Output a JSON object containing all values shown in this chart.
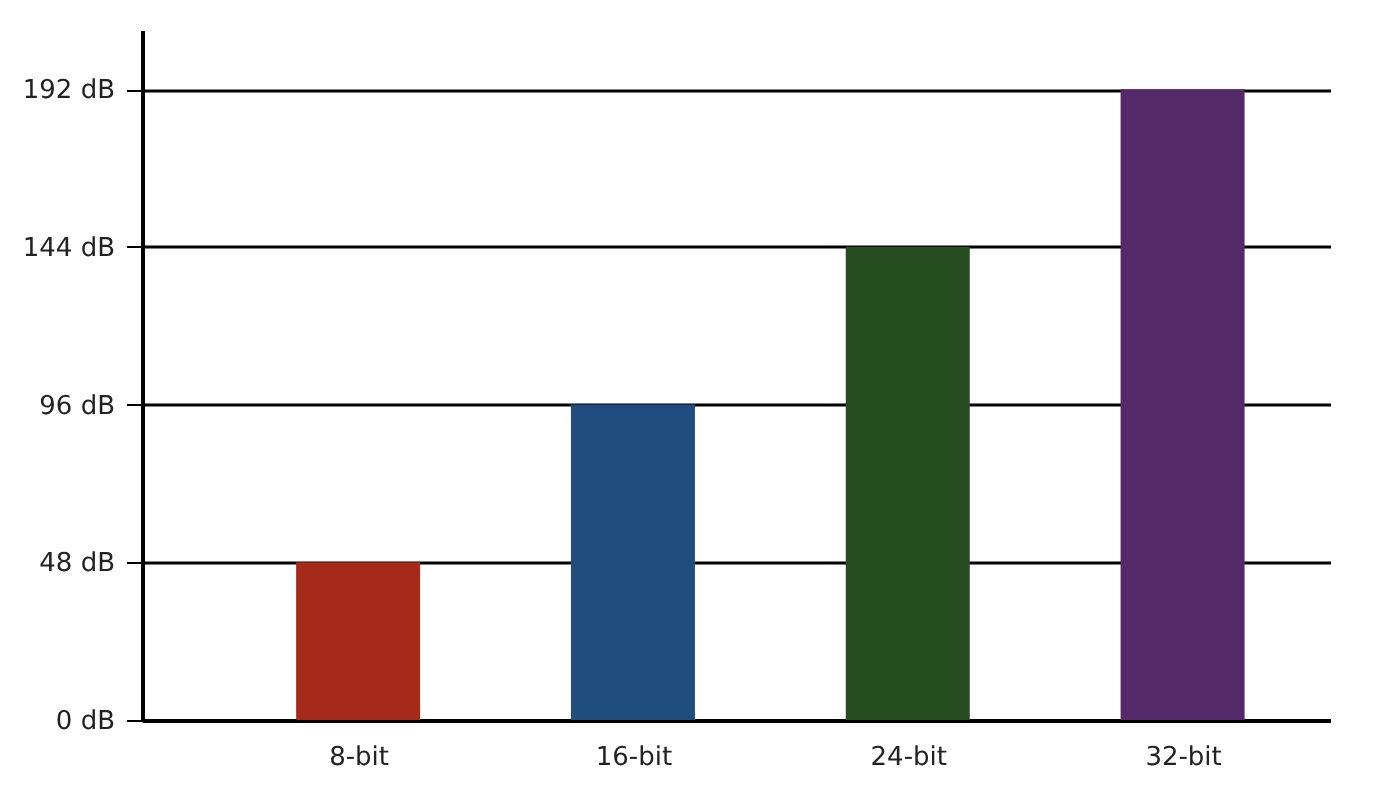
{
  "chart_data": {
    "type": "bar",
    "categories": [
      "8-bit",
      "16-bit",
      "24-bit",
      "32-bit"
    ],
    "values": [
      48,
      96,
      144,
      192
    ],
    "colors": [
      "#a52a1a",
      "#1f4e7e",
      "#264d1f",
      "#54296a"
    ],
    "ylim": [
      0,
      210
    ],
    "yticks": [
      {
        "value": 0,
        "label": "0 dB"
      },
      {
        "value": 48,
        "label": "48 dB"
      },
      {
        "value": 96,
        "label": "96 dB"
      },
      {
        "value": 144,
        "label": "144 dB"
      },
      {
        "value": 192,
        "label": "192 dB"
      }
    ],
    "grid": "y"
  }
}
